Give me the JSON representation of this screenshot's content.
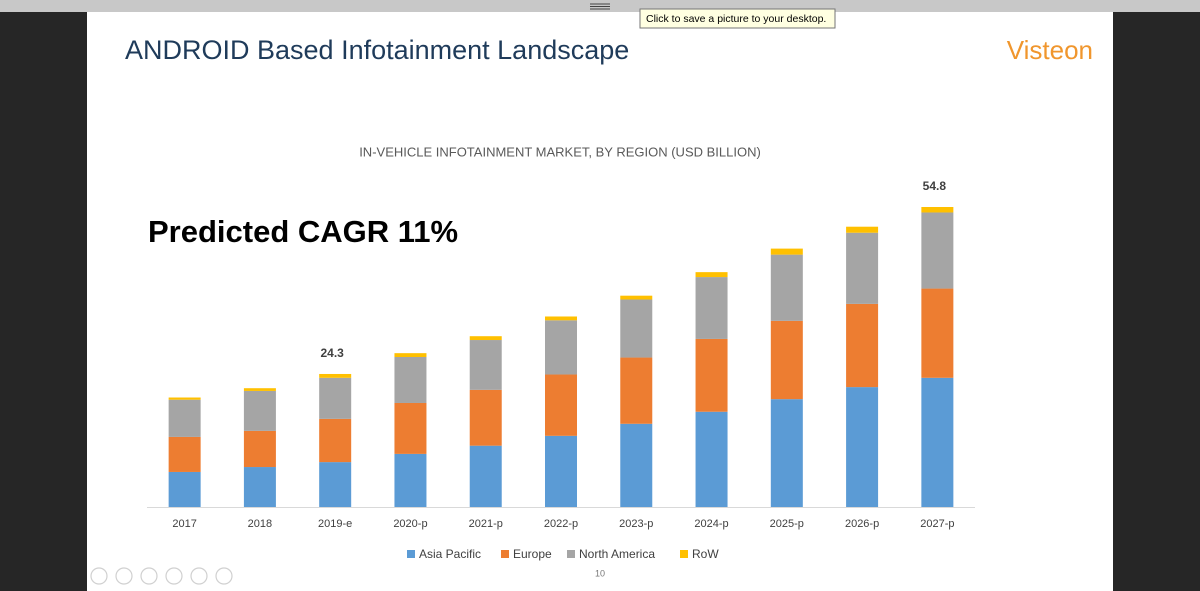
{
  "tooltip": "Click to save a picture to your desktop.",
  "slide": {
    "title": "ANDROID Based Infotainment Landscape",
    "logo": "Visteon",
    "callout": "Predicted CAGR 11%",
    "page_number": "10"
  },
  "chart_data": {
    "type": "stacked_bar",
    "title": "IN-VEHICLE INFOTAINMENT MARKET, BY REGION (USD BILLION)",
    "categories": [
      "2017",
      "2018",
      "2019-e",
      "2020-p",
      "2021-p",
      "2022-p",
      "2023-p",
      "2024-p",
      "2025-p",
      "2026-p",
      "2027-p"
    ],
    "series": [
      {
        "name": "Asia Pacific",
        "color": "#5b9bd5",
        "values": [
          6.4,
          7.3,
          8.2,
          9.7,
          11.2,
          13.0,
          15.2,
          17.4,
          19.7,
          21.9,
          23.6
        ]
      },
      {
        "name": "Europe",
        "color": "#ed7d31",
        "values": [
          6.4,
          6.6,
          7.9,
          9.3,
          10.2,
          11.2,
          12.1,
          13.3,
          14.3,
          15.2,
          16.3
        ]
      },
      {
        "name": "North America",
        "color": "#a5a5a5",
        "values": [
          6.8,
          7.3,
          7.5,
          8.4,
          9.1,
          9.9,
          10.6,
          11.3,
          12.1,
          13.0,
          13.9
        ]
      },
      {
        "name": "RoW",
        "color": "#ffc000",
        "values": [
          0.4,
          0.5,
          0.7,
          0.7,
          0.7,
          0.7,
          0.7,
          0.9,
          1.1,
          1.1,
          1.0
        ]
      }
    ],
    "total_labels": [
      null,
      null,
      24.3,
      null,
      null,
      null,
      null,
      null,
      null,
      null,
      54.8
    ],
    "legend": "bottom"
  }
}
